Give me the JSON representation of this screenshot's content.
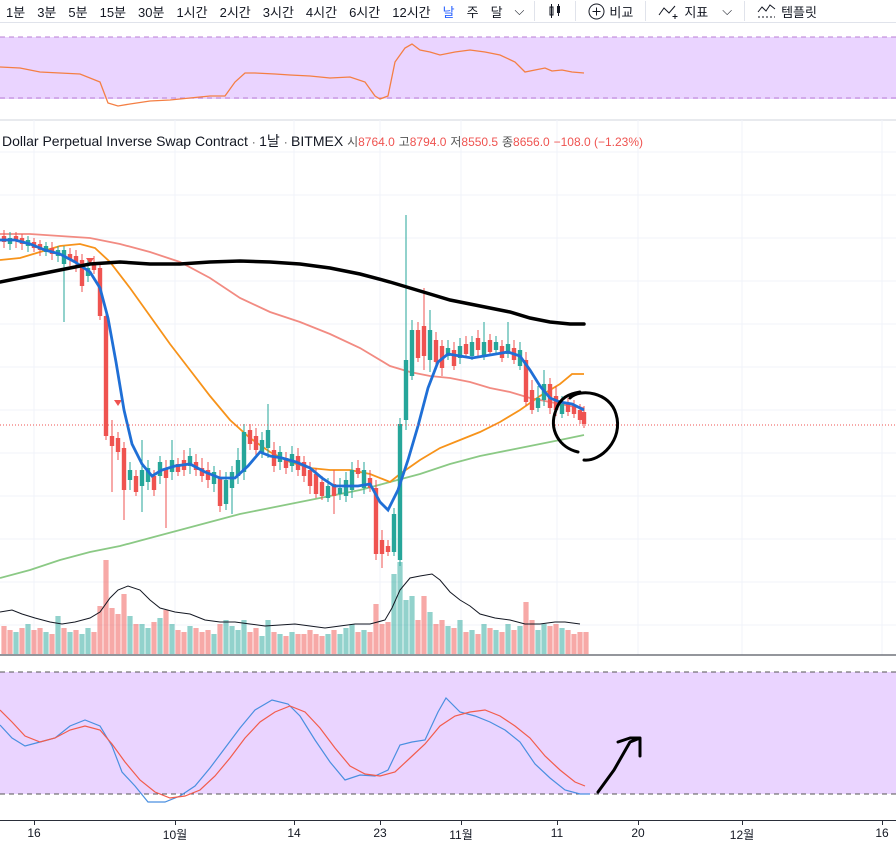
{
  "toolbar": {
    "timeframes": [
      "1분",
      "3분",
      "5분",
      "15분",
      "30분",
      "1시간",
      "2시간",
      "3시간",
      "4시간",
      "6시간",
      "12시간",
      "날",
      "주",
      "달"
    ],
    "active_timeframe": "날",
    "compare_label": "비교",
    "indicators_label": "지표",
    "templates_label": "템플릿"
  },
  "legend": {
    "symbol": "Dollar Perpetual Inverse Swap Contract",
    "interval": "1날",
    "exchange": "BITMEX",
    "open_label": "시",
    "open": "8764.0",
    "high_label": "고",
    "high": "8794.0",
    "low_label": "저",
    "low": "8550.5",
    "close_label": "종",
    "close": "8656.0",
    "change": "−108.0 (−1.23%)"
  },
  "xaxis": {
    "labels": [
      "16",
      "10월",
      "14",
      "23",
      "11월",
      "11",
      "20",
      "12월",
      "16"
    ]
  },
  "colors": {
    "up": "#26a69a",
    "down": "#ef5350",
    "pane_bg": "#ead4ff",
    "ema_fast": "#1f6fd6",
    "ema_mid": "#f7931a",
    "ma_red": "#f28b82",
    "ma_green": "#8bc985",
    "drawing": "#000000"
  }
}
